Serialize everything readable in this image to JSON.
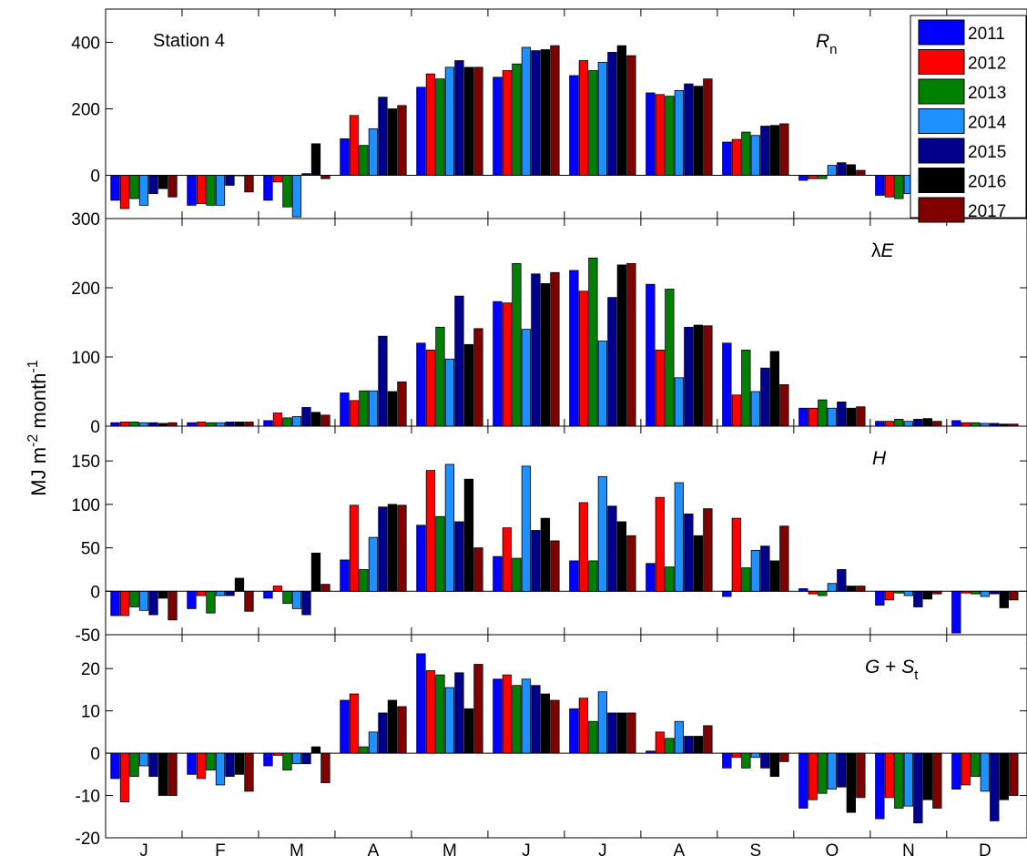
{
  "figure": {
    "ylabel_base": "MJ m",
    "ylabel_exp1": "-2",
    "ylabel_mid": " month",
    "ylabel_exp2": "-1"
  },
  "chart_data": [
    {
      "type": "bar",
      "id": "rn",
      "label_main": "R",
      "label_sub": "n",
      "annotation": "Station 4",
      "categories": [
        "J",
        "F",
        "M",
        "A",
        "M",
        "J",
        "J",
        "A",
        "S",
        "O",
        "N",
        "D"
      ],
      "ylim": [
        -130,
        500
      ],
      "yticks": [
        0,
        200,
        400
      ],
      "series": [
        {
          "name": "2011",
          "values": [
            -75,
            -90,
            -75,
            110,
            265,
            295,
            300,
            248,
            100,
            -15,
            -60,
            -70
          ]
        },
        {
          "name": "2012",
          "values": [
            -100,
            -85,
            -20,
            180,
            305,
            315,
            345,
            243,
            108,
            -10,
            -65,
            -95
          ]
        },
        {
          "name": "2013",
          "values": [
            -70,
            -90,
            -95,
            90,
            290,
            335,
            315,
            238,
            130,
            -10,
            -70,
            -65
          ]
        },
        {
          "name": "2014",
          "values": [
            -90,
            -90,
            -125,
            140,
            325,
            385,
            340,
            255,
            120,
            30,
            -55,
            -60
          ]
        },
        {
          "name": "2015",
          "values": [
            -55,
            -30,
            5,
            235,
            345,
            375,
            370,
            275,
            148,
            38,
            -45,
            -30
          ]
        },
        {
          "name": "2016",
          "values": [
            -40,
            0,
            95,
            200,
            325,
            378,
            390,
            268,
            150,
            32,
            -40,
            -20
          ]
        },
        {
          "name": "2017",
          "values": [
            -65,
            -50,
            -10,
            210,
            325,
            390,
            360,
            290,
            155,
            15,
            -50,
            -60
          ]
        }
      ]
    },
    {
      "type": "bar",
      "id": "le",
      "label_main": "λE",
      "categories": [
        "J",
        "F",
        "M",
        "A",
        "M",
        "J",
        "J",
        "A",
        "S",
        "O",
        "N",
        "D"
      ],
      "ylim": [
        0,
        300
      ],
      "yticks": [
        0,
        100,
        200,
        300
      ],
      "series": [
        {
          "name": "2011",
          "values": [
            5,
            5,
            8,
            48,
            120,
            180,
            225,
            205,
            120,
            26,
            7,
            8
          ]
        },
        {
          "name": "2012",
          "values": [
            6,
            6,
            19,
            37,
            110,
            178,
            195,
            110,
            45,
            26,
            7,
            5
          ]
        },
        {
          "name": "2013",
          "values": [
            6,
            5,
            12,
            51,
            143,
            235,
            243,
            198,
            110,
            38,
            10,
            5
          ]
        },
        {
          "name": "2014",
          "values": [
            5,
            5,
            14,
            51,
            97,
            140,
            123,
            70,
            50,
            26,
            7,
            4
          ]
        },
        {
          "name": "2015",
          "values": [
            5,
            6,
            27,
            130,
            188,
            220,
            186,
            143,
            84,
            35,
            10,
            4
          ]
        },
        {
          "name": "2016",
          "values": [
            4,
            6,
            20,
            50,
            118,
            206,
            233,
            146,
            108,
            26,
            11,
            3
          ]
        },
        {
          "name": "2017",
          "values": [
            5,
            6,
            16,
            64,
            141,
            222,
            235,
            145,
            60,
            28,
            7,
            3
          ]
        }
      ]
    },
    {
      "type": "bar",
      "id": "h",
      "label_main": "H",
      "categories": [
        "J",
        "F",
        "M",
        "A",
        "M",
        "J",
        "J",
        "A",
        "S",
        "O",
        "N",
        "D"
      ],
      "ylim": [
        -50,
        190
      ],
      "yticks": [
        -50,
        0,
        50,
        100,
        150
      ],
      "series": [
        {
          "name": "2011",
          "values": [
            -28,
            -20,
            -8,
            36,
            76,
            40,
            35,
            32,
            -6,
            3,
            -16,
            -48
          ]
        },
        {
          "name": "2012",
          "values": [
            -28,
            -5,
            6,
            99,
            139,
            73,
            102,
            108,
            84,
            -3,
            -10,
            -2
          ]
        },
        {
          "name": "2013",
          "values": [
            -18,
            -25,
            -14,
            25,
            86,
            38,
            35,
            28,
            27,
            -5,
            -2,
            -3
          ]
        },
        {
          "name": "2014",
          "values": [
            -22,
            -5,
            -20,
            62,
            146,
            144,
            132,
            125,
            47,
            9,
            -5,
            -6
          ]
        },
        {
          "name": "2015",
          "values": [
            -27,
            -5,
            -27,
            97,
            80,
            70,
            98,
            89,
            52,
            25,
            -18,
            -3
          ]
        },
        {
          "name": "2016",
          "values": [
            -8,
            15,
            44,
            100,
            129,
            84,
            80,
            64,
            35,
            6,
            -9,
            -19
          ]
        },
        {
          "name": "2017",
          "values": [
            -33,
            -23,
            8,
            99,
            50,
            58,
            64,
            95,
            75,
            6,
            -3,
            -10
          ]
        }
      ]
    },
    {
      "type": "bar",
      "id": "g",
      "label_main": "G + S",
      "label_sub": "t",
      "categories": [
        "J",
        "F",
        "M",
        "A",
        "M",
        "J",
        "J",
        "A",
        "S",
        "O",
        "N",
        "D"
      ],
      "ylim": [
        -20,
        28
      ],
      "yticks": [
        -20,
        -10,
        0,
        10,
        20
      ],
      "series": [
        {
          "name": "2011",
          "values": [
            -6,
            -5,
            -3,
            12.5,
            23.5,
            17.5,
            10.5,
            0.5,
            -3.5,
            -13,
            -15.5,
            -8.5
          ]
        },
        {
          "name": "2012",
          "values": [
            -11.5,
            -6,
            -0.5,
            14,
            19.5,
            18.5,
            13,
            5,
            -1,
            -11,
            -10.5,
            -7.5
          ]
        },
        {
          "name": "2013",
          "values": [
            -5.5,
            -4,
            -4,
            1.5,
            18.5,
            16,
            7.5,
            3.5,
            -3.5,
            -9.5,
            -13,
            -5.5
          ]
        },
        {
          "name": "2014",
          "values": [
            -3,
            -7.5,
            -2.5,
            5,
            15.5,
            17.5,
            14.5,
            7.5,
            -1,
            -8.5,
            -12.5,
            -9
          ]
        },
        {
          "name": "2015",
          "values": [
            -5.5,
            -5.5,
            -2.5,
            9.5,
            19,
            16,
            9.5,
            4,
            -3.5,
            -8,
            -16.5,
            -16
          ]
        },
        {
          "name": "2016",
          "values": [
            -10,
            -5,
            1.5,
            12.5,
            10.5,
            14,
            9.5,
            4,
            -5.5,
            -14,
            -11,
            -11
          ]
        },
        {
          "name": "2017",
          "values": [
            -10,
            -9,
            -7,
            11,
            21,
            12.5,
            9.5,
            6.5,
            -2,
            -10.5,
            -13,
            -10
          ]
        }
      ]
    }
  ],
  "legend": {
    "position": "top-right",
    "items": [
      {
        "label": "2011",
        "color": "#0000FF"
      },
      {
        "label": "2012",
        "color": "#FF0000"
      },
      {
        "label": "2013",
        "color": "#008000"
      },
      {
        "label": "2014",
        "color": "#1E90FF"
      },
      {
        "label": "2015",
        "color": "#00008B"
      },
      {
        "label": "2016",
        "color": "#000000"
      },
      {
        "label": "2017",
        "color": "#800000"
      }
    ]
  }
}
